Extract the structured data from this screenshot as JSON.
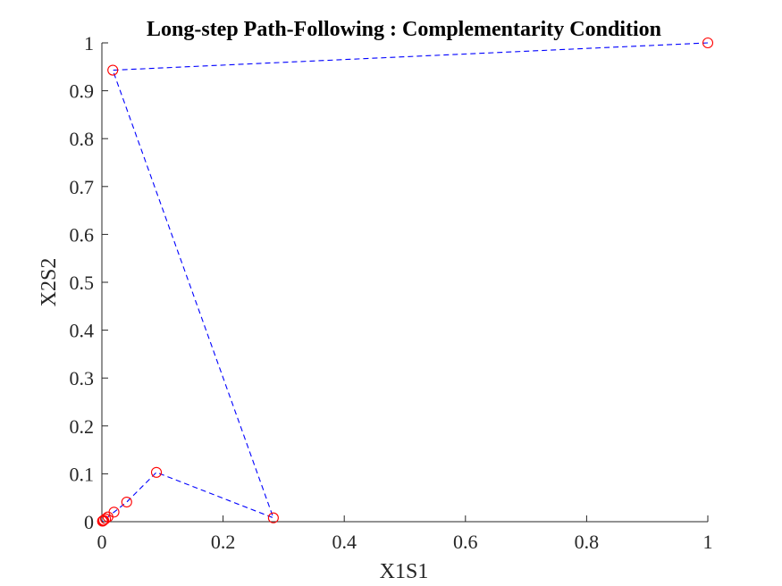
{
  "chart_data": {
    "type": "line",
    "title": "Long-step Path-Following : Complementarity Condition",
    "xlabel": "X1S1",
    "ylabel": "X2S2",
    "xlim": [
      0,
      1
    ],
    "ylim": [
      0,
      1
    ],
    "x_ticks": [
      "0",
      "0.2",
      "0.4",
      "0.6",
      "0.8",
      "1"
    ],
    "y_ticks": [
      "0",
      "0.1",
      "0.2",
      "0.3",
      "0.4",
      "0.5",
      "0.6",
      "0.7",
      "0.8",
      "0.9",
      "1"
    ],
    "grid": false,
    "series": [
      {
        "line_style": "dashed",
        "marker": "circle",
        "line_color": "#0000ff",
        "marker_color": "#ff0000",
        "x": [
          1.0,
          0.018,
          0.283,
          0.09,
          0.041,
          0.02,
          0.01,
          0.006,
          0.003,
          0.002,
          0.001
        ],
        "y": [
          1.0,
          0.943,
          0.008,
          0.103,
          0.041,
          0.02,
          0.01,
          0.006,
          0.003,
          0.002,
          0.001
        ]
      }
    ]
  }
}
